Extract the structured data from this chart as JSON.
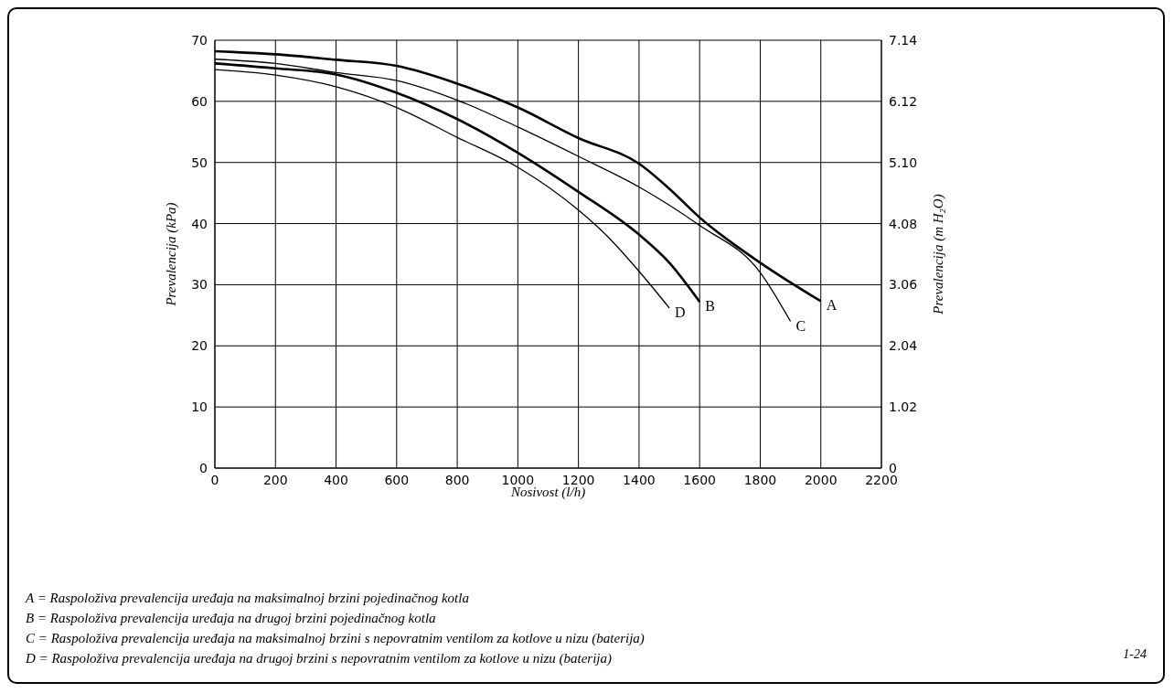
{
  "chart_data": {
    "type": "line",
    "xlabel": "Nosivost (l/h)",
    "ylabel": "Prevalencija (kPa)",
    "y2label": "Prevalencija (m H₂O)",
    "xlim": [
      0,
      2200
    ],
    "xticks": [
      0,
      200,
      400,
      600,
      800,
      1000,
      1200,
      1400,
      1600,
      1800,
      2000,
      2200
    ],
    "ylim": [
      0,
      70
    ],
    "yticks": [
      0,
      10,
      20,
      30,
      40,
      50,
      60,
      70
    ],
    "y2lim": [
      0,
      7.14
    ],
    "y2ticks": [
      0,
      1.02,
      2.04,
      3.06,
      4.08,
      {
        "value": 5.1,
        "label": "5.10"
      },
      6.12,
      7.14
    ],
    "grid": true,
    "marker": "none",
    "line_style": "solid",
    "series": [
      {
        "name": "A",
        "color": "#000000",
        "x": [
          0,
          200,
          400,
          600,
          800,
          1000,
          1200,
          1400,
          1500,
          1600,
          1800,
          2000
        ],
        "values": [
          68.2,
          67.7,
          66.8,
          65.8,
          62.9,
          59.0,
          54.0,
          49.8,
          45.7,
          41.0,
          33.6,
          27.3
        ]
      },
      {
        "name": "B",
        "color": "#000000",
        "x": [
          0,
          200,
          400,
          600,
          800,
          1000,
          1200,
          1400,
          1500,
          1600
        ],
        "values": [
          66.2,
          65.4,
          64.4,
          61.4,
          57.1,
          51.6,
          45.2,
          38.2,
          33.6,
          27.2
        ]
      },
      {
        "name": "C",
        "color": "#000000",
        "x": [
          0,
          200,
          400,
          600,
          800,
          1000,
          1200,
          1400,
          1600,
          1800,
          1900
        ],
        "values": [
          66.9,
          66.2,
          64.7,
          63.4,
          60.2,
          55.8,
          51.0,
          46.0,
          39.7,
          32.0,
          24.0
        ]
      },
      {
        "name": "D",
        "color": "#000000",
        "x": [
          0,
          200,
          400,
          600,
          800,
          1000,
          1200,
          1300,
          1400,
          1500
        ],
        "values": [
          65.2,
          64.3,
          62.4,
          59.0,
          54.1,
          49.2,
          42.2,
          37.7,
          32.2,
          26.2
        ]
      }
    ],
    "annotations": [
      "A = Raspoloživa prevalencija uređaja na maksimalnoj brzini pojedinačnog kotla",
      "B = Raspoloživa prevalencija uređaja na drugoj brzini pojedinačnog kotla",
      "C = Raspoloživa prevalencija uređaja na maksimalnoj brzini s nepovratnim ventilom za kotlove u nizu (baterija)",
      "D = Raspoloživa prevalencija uređaja na drugoj brzini s nepovratnim ventilom za kotlove u nizu (baterija)",
      "1-24"
    ]
  }
}
